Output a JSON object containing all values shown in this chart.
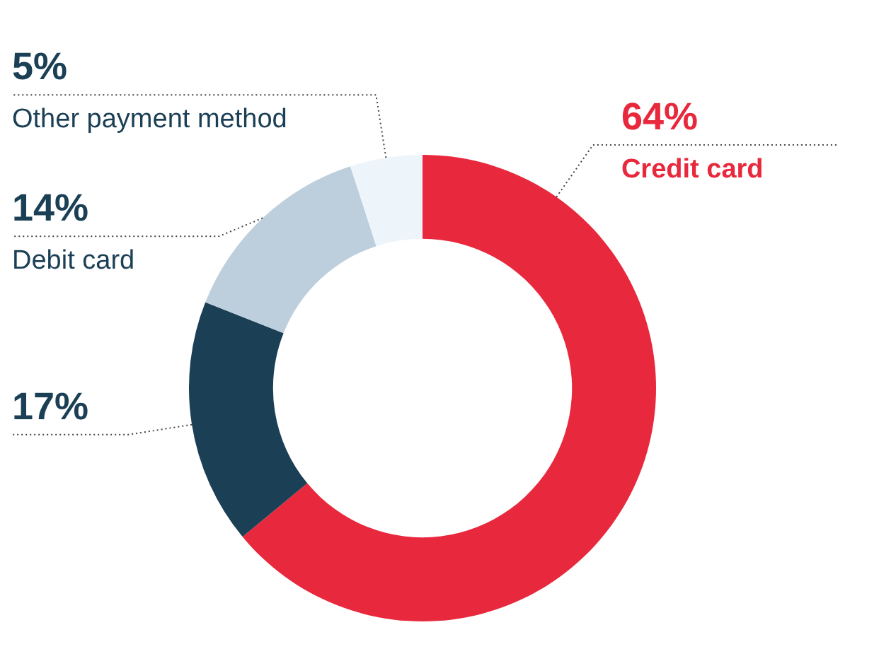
{
  "chart_data": {
    "type": "donut",
    "categories": [
      "Credit card",
      null,
      "Debit card",
      "Other payment method"
    ],
    "values": [
      64,
      17,
      14,
      5
    ],
    "colors": [
      "#e8283c",
      "#1b3f55",
      "#bdcfdd",
      "#edf5fb"
    ],
    "value_labels": [
      "64%",
      "17%",
      "14%",
      "5%"
    ]
  }
}
